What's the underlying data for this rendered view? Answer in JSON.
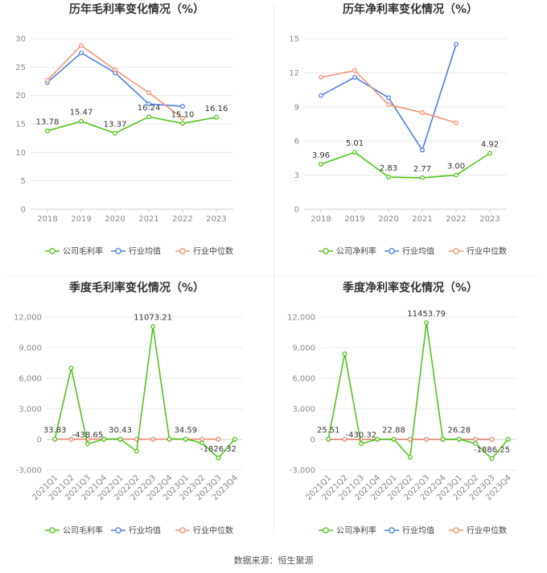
{
  "footer": {
    "source": "数据来源：恒生聚源"
  },
  "colors": {
    "company": "#52c41a",
    "industry_avg": "#4e7fe6",
    "industry_median": "#f59272"
  },
  "chart_data": [
    {
      "type": "line",
      "title": "历年毛利率变化情况（%）",
      "categories": [
        "2018",
        "2019",
        "2020",
        "2021",
        "2022",
        "2023"
      ],
      "ylim": [
        0,
        30
      ],
      "yticks": [
        "0",
        "5",
        "10",
        "15",
        "20",
        "25",
        "30"
      ],
      "grid": true,
      "legend_position": "bottom",
      "series": [
        {
          "name": "公司毛利率",
          "values": [
            13.78,
            15.47,
            13.37,
            16.24,
            15.1,
            16.16
          ],
          "labels": [
            "13.78",
            "15.47",
            "13.37",
            "16.24",
            "15.10",
            "16.16"
          ]
        },
        {
          "name": "行业均值",
          "values": [
            22.3,
            27.5,
            24.0,
            18.5,
            18.1,
            null
          ]
        },
        {
          "name": "行业中位数",
          "values": [
            22.7,
            28.8,
            24.5,
            20.5,
            16.0,
            null
          ]
        }
      ]
    },
    {
      "type": "line",
      "title": "历年净利率变化情况（%）",
      "categories": [
        "2018",
        "2019",
        "2020",
        "2021",
        "2022",
        "2023"
      ],
      "ylim": [
        0,
        15
      ],
      "yticks": [
        "0",
        "3",
        "6",
        "9",
        "12",
        "15"
      ],
      "grid": true,
      "legend_position": "bottom",
      "series": [
        {
          "name": "公司净利率",
          "values": [
            3.96,
            5.01,
            2.83,
            2.77,
            3.0,
            4.92
          ],
          "labels": [
            "3.96",
            "5.01",
            "2.83",
            "2.77",
            "3.00",
            "4.92"
          ]
        },
        {
          "name": "行业均值",
          "values": [
            10.0,
            11.6,
            9.8,
            5.2,
            14.5,
            null
          ]
        },
        {
          "name": "行业中位数",
          "values": [
            11.6,
            12.2,
            9.2,
            8.5,
            7.6,
            null
          ]
        }
      ]
    },
    {
      "type": "line",
      "title": "季度毛利率变化情况（%）",
      "categories": [
        "2021Q1",
        "2021Q2",
        "2021Q3",
        "2021Q4",
        "2022Q1",
        "2022Q2",
        "2022Q3",
        "2022Q4",
        "2023Q1",
        "2023Q2",
        "2023Q3",
        "2023Q4"
      ],
      "ylim": [
        -3000,
        12000
      ],
      "yticks": [
        "-3,000",
        "0",
        "3,000",
        "6,000",
        "9,000",
        "12,000"
      ],
      "grid": true,
      "legend_position": "bottom",
      "series": [
        {
          "name": "公司毛利率",
          "values": [
            33.83,
            7000,
            -438.65,
            20,
            30.43,
            -1150,
            11073.21,
            30,
            34.59,
            -350,
            -1826.32,
            20
          ],
          "labels": [
            "33.83",
            null,
            "-438.65",
            null,
            "30.43",
            null,
            "11073.21",
            null,
            "34.59",
            null,
            "-1826.32",
            null
          ]
        },
        {
          "name": "行业均值",
          "values": [
            20,
            20,
            20,
            20,
            20,
            20,
            20,
            20,
            20,
            20,
            20,
            null
          ]
        },
        {
          "name": "行业中位数",
          "values": [
            18,
            18,
            18,
            18,
            18,
            18,
            18,
            18,
            18,
            18,
            18,
            null
          ]
        }
      ]
    },
    {
      "type": "line",
      "title": "季度净利率变化情况（%）",
      "categories": [
        "2021Q1",
        "2021Q2",
        "2021Q3",
        "2021Q4",
        "2022Q1",
        "2022Q2",
        "2022Q3",
        "2022Q4",
        "2023Q1",
        "2023Q2",
        "2023Q3",
        "2023Q4"
      ],
      "ylim": [
        -3000,
        12000
      ],
      "yticks": [
        "-3,000",
        "0",
        "3,000",
        "6,000",
        "9,000",
        "12,000"
      ],
      "grid": true,
      "legend_position": "bottom",
      "series": [
        {
          "name": "公司净利率",
          "values": [
            25.51,
            8400,
            -430.32,
            15,
            22.88,
            -1750,
            11453.79,
            20,
            26.28,
            -400,
            -1886.25,
            20
          ],
          "labels": [
            "25.51",
            null,
            "-430.32",
            null,
            "22.88",
            null,
            "11453.79",
            null,
            "26.28",
            null,
            "-1886.25",
            null
          ]
        },
        {
          "name": "行业均值",
          "values": [
            10,
            10,
            10,
            10,
            10,
            10,
            10,
            10,
            10,
            10,
            10,
            null
          ]
        },
        {
          "name": "行业中位数",
          "values": [
            8,
            8,
            8,
            8,
            8,
            8,
            8,
            8,
            8,
            8,
            8,
            null
          ]
        }
      ]
    }
  ]
}
